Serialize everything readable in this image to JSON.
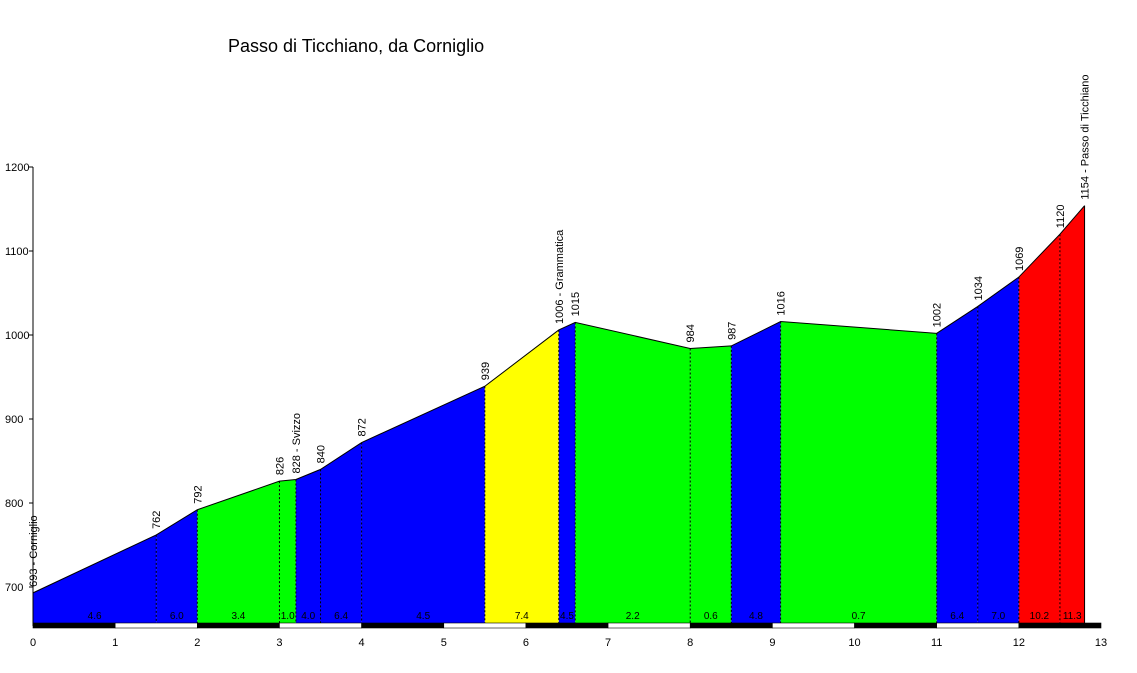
{
  "chart_data": {
    "type": "area",
    "title": "Passo di Ticchiano, da Corniglio",
    "xlabel": "",
    "ylabel": "",
    "xlim": [
      0,
      13
    ],
    "ylim": [
      655,
      1200
    ],
    "x_ticks": [
      0,
      1,
      2,
      3,
      4,
      5,
      6,
      7,
      8,
      9,
      10,
      11,
      12,
      13
    ],
    "y_ticks": [
      700,
      800,
      900,
      1000,
      1100,
      1200
    ],
    "grid": false,
    "profile": [
      {
        "x": 0,
        "y": 693,
        "label": "693 - Corniglio"
      },
      {
        "x": 1.5,
        "y": 762,
        "label": "762"
      },
      {
        "x": 2.0,
        "y": 792,
        "label": "792"
      },
      {
        "x": 3.0,
        "y": 826,
        "label": "826"
      },
      {
        "x": 3.2,
        "y": 828,
        "label": "828 - Svizzo"
      },
      {
        "x": 3.5,
        "y": 840,
        "label": "840"
      },
      {
        "x": 4.0,
        "y": 872,
        "label": "872"
      },
      {
        "x": 5.5,
        "y": 939,
        "label": "939"
      },
      {
        "x": 6.4,
        "y": 1006,
        "label": "1006 - Grammatica"
      },
      {
        "x": 6.6,
        "y": 1015,
        "label": "1015"
      },
      {
        "x": 8.0,
        "y": 984,
        "label": "984"
      },
      {
        "x": 8.5,
        "y": 987,
        "label": "987"
      },
      {
        "x": 9.1,
        "y": 1016,
        "label": "1016"
      },
      {
        "x": 11.0,
        "y": 1002,
        "label": "1002"
      },
      {
        "x": 11.5,
        "y": 1034,
        "label": "1034"
      },
      {
        "x": 12.0,
        "y": 1069,
        "label": "1069"
      },
      {
        "x": 12.5,
        "y": 1120,
        "label": "1120"
      },
      {
        "x": 12.8,
        "y": 1154,
        "label": "1154 - Passo di Ticchiano"
      }
    ],
    "segments": [
      {
        "from": 0,
        "to": 1.5,
        "gradient": "4.6",
        "color": "#0000ff"
      },
      {
        "from": 1.5,
        "to": 2.0,
        "gradient": "6.0",
        "color": "#0000ff"
      },
      {
        "from": 2.0,
        "to": 3.0,
        "gradient": "3.4",
        "color": "#00ff00"
      },
      {
        "from": 3.0,
        "to": 3.2,
        "gradient": "1.0",
        "color": "#00ff00"
      },
      {
        "from": 3.2,
        "to": 3.5,
        "gradient": "4.0",
        "color": "#0000ff"
      },
      {
        "from": 3.5,
        "to": 4.0,
        "gradient": "6.4",
        "color": "#0000ff"
      },
      {
        "from": 4.0,
        "to": 5.5,
        "gradient": "4.5",
        "color": "#0000ff"
      },
      {
        "from": 5.5,
        "to": 6.4,
        "gradient": "7.4",
        "color": "#ffff00"
      },
      {
        "from": 6.4,
        "to": 6.6,
        "gradient": "4.5",
        "color": "#0000ff"
      },
      {
        "from": 6.6,
        "to": 8.0,
        "gradient": "2.2",
        "color": "#00ff00"
      },
      {
        "from": 8.0,
        "to": 8.5,
        "gradient": "0.6",
        "color": "#00ff00"
      },
      {
        "from": 8.5,
        "to": 9.1,
        "gradient": "4.8",
        "color": "#0000ff"
      },
      {
        "from": 9.1,
        "to": 11.0,
        "gradient": "0.7",
        "color": "#00ff00"
      },
      {
        "from": 11.0,
        "to": 11.5,
        "gradient": "6.4",
        "color": "#0000ff"
      },
      {
        "from": 11.5,
        "to": 12.0,
        "gradient": "7.0",
        "color": "#0000ff"
      },
      {
        "from": 12.0,
        "to": 12.5,
        "gradient": "10.2",
        "color": "#ff0000"
      },
      {
        "from": 12.5,
        "to": 12.8,
        "gradient": "11.3",
        "color": "#ff0000"
      }
    ]
  }
}
